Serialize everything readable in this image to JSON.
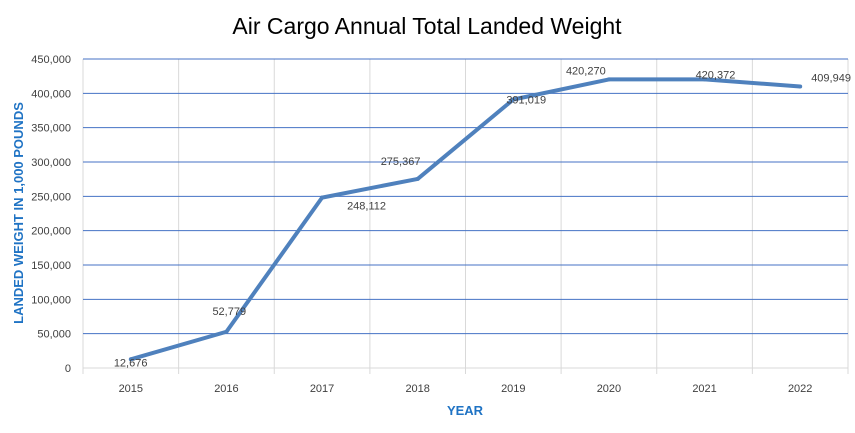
{
  "chart_data": {
    "type": "line",
    "title": "Air Cargo Annual Total Landed Weight",
    "xlabel": "YEAR",
    "ylabel": "LANDED WEIGHT IN 1,000 POUNDS",
    "categories": [
      "2015",
      "2016",
      "2017",
      "2018",
      "2019",
      "2020",
      "2021",
      "2022"
    ],
    "series": [
      {
        "values": [
          12676,
          52779,
          248112,
          275367,
          391019,
          420270,
          420372,
          409949
        ]
      }
    ],
    "data_labels": [
      "12,676",
      "52,779",
      "248,112",
      "275,367",
      "391,019",
      "420,270",
      "420,372",
      "409,949"
    ],
    "ylim": [
      0,
      450000
    ],
    "yticks": [
      0,
      50000,
      100000,
      150000,
      200000,
      250000,
      300000,
      350000,
      400000,
      450000
    ],
    "ytick_labels": [
      "0",
      "50,000",
      "100,000",
      "150,000",
      "200,000",
      "250,000",
      "300,000",
      "350,000",
      "400,000",
      "450,000"
    ],
    "grid": true,
    "legend": "none",
    "colors": {
      "line": "#4f81bd",
      "hgrid": "#4472c4",
      "vgrid": "#d9d9d9",
      "axis_label": "#1f73c4"
    }
  }
}
